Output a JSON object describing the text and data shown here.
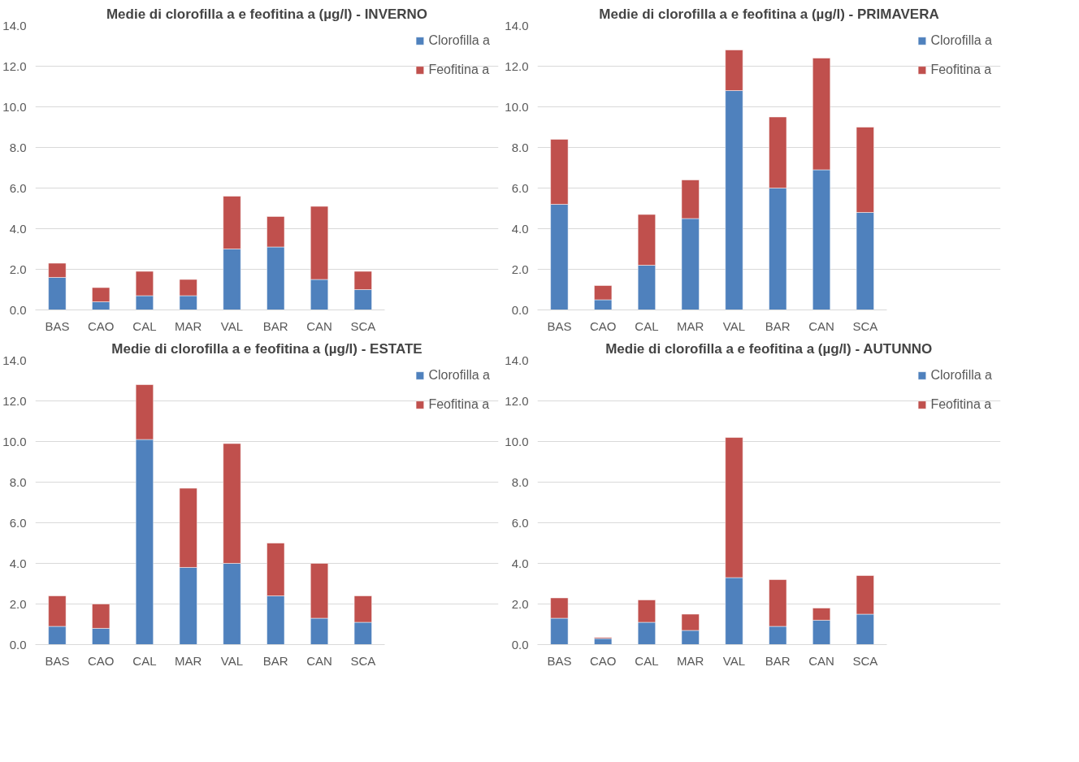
{
  "chart_data": [
    {
      "type": "bar",
      "title": "Medie di clorofilla a e feofitina a (µg/l) - INVERNO",
      "categories": [
        "BAS",
        "CAO",
        "CAL",
        "MAR",
        "VAL",
        "BAR",
        "CAN",
        "SCA"
      ],
      "stacked": true,
      "series": [
        {
          "name": "Clorofilla a",
          "color": "#4f81bd",
          "values": [
            1.6,
            0.4,
            0.7,
            0.7,
            3.0,
            3.1,
            1.5,
            1.0
          ]
        },
        {
          "name": "Feofitina a",
          "color": "#c0504d",
          "values": [
            0.7,
            0.7,
            1.2,
            0.8,
            2.6,
            1.5,
            3.6,
            0.9
          ]
        }
      ],
      "ylim": [
        0,
        14
      ],
      "yticks": [
        {
          "value": 0,
          "label": "0.0"
        },
        {
          "value": 2,
          "label": "2.0"
        },
        {
          "value": 4,
          "label": "4.0"
        },
        {
          "value": 6,
          "label": "6.0"
        },
        {
          "value": 8,
          "label": "8.0"
        },
        {
          "value": 10,
          "label": "10.0"
        },
        {
          "value": 12,
          "label": "12.0"
        },
        {
          "value": 14,
          "label": "14.0"
        }
      ],
      "grid": "y",
      "legend": "top right"
    },
    {
      "type": "bar",
      "title": "Medie di clorofilla a e feofitina a (µg/l) - PRIMAVERA",
      "categories": [
        "BAS",
        "CAO",
        "CAL",
        "MAR",
        "VAL",
        "BAR",
        "CAN",
        "SCA"
      ],
      "stacked": true,
      "series": [
        {
          "name": "Clorofilla a",
          "color": "#4f81bd",
          "values": [
            5.2,
            0.5,
            2.2,
            4.5,
            10.8,
            6.0,
            6.9,
            4.8
          ]
        },
        {
          "name": "Feofitina a",
          "color": "#c0504d",
          "values": [
            3.2,
            0.7,
            2.5,
            1.9,
            2.0,
            3.5,
            5.5,
            4.2
          ]
        }
      ],
      "ylim": [
        0,
        14
      ],
      "yticks": [
        {
          "value": 0,
          "label": "0.0"
        },
        {
          "value": 2,
          "label": "2.0"
        },
        {
          "value": 4,
          "label": "4.0"
        },
        {
          "value": 6,
          "label": "6.0"
        },
        {
          "value": 8,
          "label": "8.0"
        },
        {
          "value": 10,
          "label": "10.0"
        },
        {
          "value": 12,
          "label": "12.0"
        },
        {
          "value": 14,
          "label": "14.0"
        }
      ],
      "grid": "y",
      "legend": "top right"
    },
    {
      "type": "bar",
      "title": "Medie di clorofilla a e feofitina a (µg/l) - ESTATE",
      "categories": [
        "BAS",
        "CAO",
        "CAL",
        "MAR",
        "VAL",
        "BAR",
        "CAN",
        "SCA"
      ],
      "stacked": true,
      "series": [
        {
          "name": "Clorofilla a",
          "color": "#4f81bd",
          "values": [
            0.9,
            0.8,
            10.1,
            3.8,
            4.0,
            2.4,
            1.3,
            1.1
          ]
        },
        {
          "name": "Feofitina a",
          "color": "#c0504d",
          "values": [
            1.5,
            1.2,
            2.7,
            3.9,
            5.9,
            2.6,
            2.7,
            1.3
          ]
        }
      ],
      "ylim": [
        0,
        14
      ],
      "yticks": [
        {
          "value": 0,
          "label": "0.0"
        },
        {
          "value": 2,
          "label": "2.0"
        },
        {
          "value": 4,
          "label": "4.0"
        },
        {
          "value": 6,
          "label": "6.0"
        },
        {
          "value": 8,
          "label": "8.0"
        },
        {
          "value": 10,
          "label": "10.0"
        },
        {
          "value": 12,
          "label": "12.0"
        },
        {
          "value": 14,
          "label": "14.0"
        }
      ],
      "grid": "y",
      "legend": "top right"
    },
    {
      "type": "bar",
      "title": "Medie di clorofilla a e feofitina a (µg/l) - AUTUNNO",
      "categories": [
        "BAS",
        "CAO",
        "CAL",
        "MAR",
        "VAL",
        "BAR",
        "CAN",
        "SCA"
      ],
      "stacked": true,
      "series": [
        {
          "name": "Clorofilla a",
          "color": "#4f81bd",
          "values": [
            1.3,
            0.3,
            1.1,
            0.7,
            3.3,
            0.9,
            1.2,
            1.5
          ]
        },
        {
          "name": "Feofitina a",
          "color": "#c0504d",
          "values": [
            1.0,
            0.05,
            1.1,
            0.8,
            6.9,
            2.3,
            0.6,
            1.9
          ]
        }
      ],
      "ylim": [
        0,
        14
      ],
      "yticks": [
        {
          "value": 0,
          "label": "0.0"
        },
        {
          "value": 2,
          "label": "2.0"
        },
        {
          "value": 4,
          "label": "4.0"
        },
        {
          "value": 6,
          "label": "6.0"
        },
        {
          "value": 8,
          "label": "8.0"
        },
        {
          "value": 10,
          "label": "10.0"
        },
        {
          "value": 12,
          "label": "12.0"
        },
        {
          "value": 14,
          "label": "14.0"
        }
      ],
      "grid": "y",
      "legend": "top right"
    }
  ]
}
